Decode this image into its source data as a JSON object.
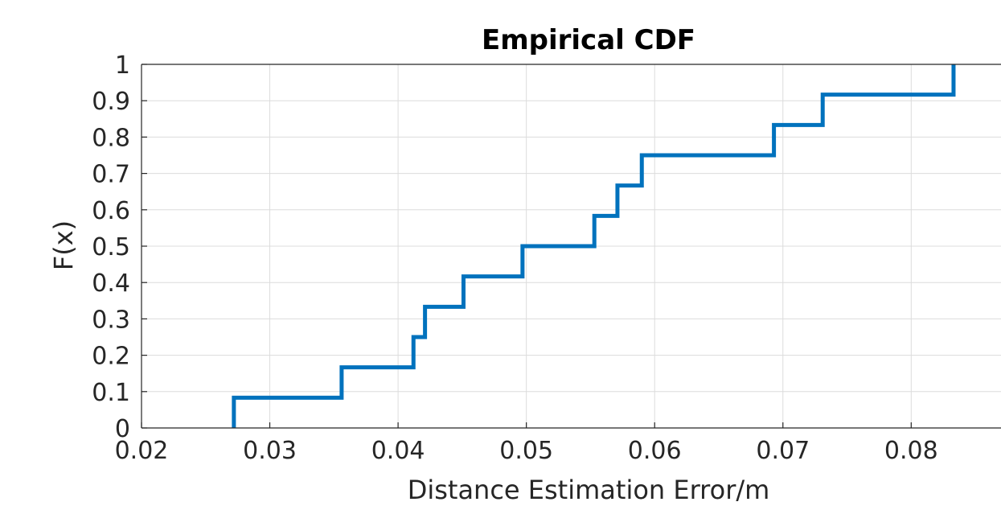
{
  "chart_data": {
    "type": "line",
    "style": "stairs",
    "title": "Empirical CDF",
    "xlabel": "Distance Estimation Error/m",
    "ylabel": "F(x)",
    "xlim": [
      0.02,
      0.087
    ],
    "ylim": [
      0,
      1
    ],
    "grid": true,
    "x_ticks": [
      0.02,
      0.03,
      0.04,
      0.05,
      0.06,
      0.07,
      0.08
    ],
    "x_tick_labels": [
      "0.02",
      "0.03",
      "0.04",
      "0.05",
      "0.06",
      "0.07",
      "0.08"
    ],
    "y_ticks": [
      0,
      0.1,
      0.2,
      0.3,
      0.4,
      0.5,
      0.6,
      0.7,
      0.8,
      0.9,
      1
    ],
    "y_tick_labels": [
      "0",
      "0.1",
      "0.2",
      "0.3",
      "0.4",
      "0.5",
      "0.6",
      "0.7",
      "0.8",
      "0.9",
      "1"
    ],
    "series": [
      {
        "color": "#0072BD",
        "x": [
          0.0272,
          0.0356,
          0.0412,
          0.0421,
          0.0451,
          0.0497,
          0.0553,
          0.0571,
          0.059,
          0.0693,
          0.0731,
          0.0833
        ],
        "y": [
          0.0833,
          0.1667,
          0.25,
          0.3333,
          0.4167,
          0.5,
          0.5833,
          0.6667,
          0.75,
          0.8333,
          0.9167,
          1.0
        ]
      }
    ]
  }
}
